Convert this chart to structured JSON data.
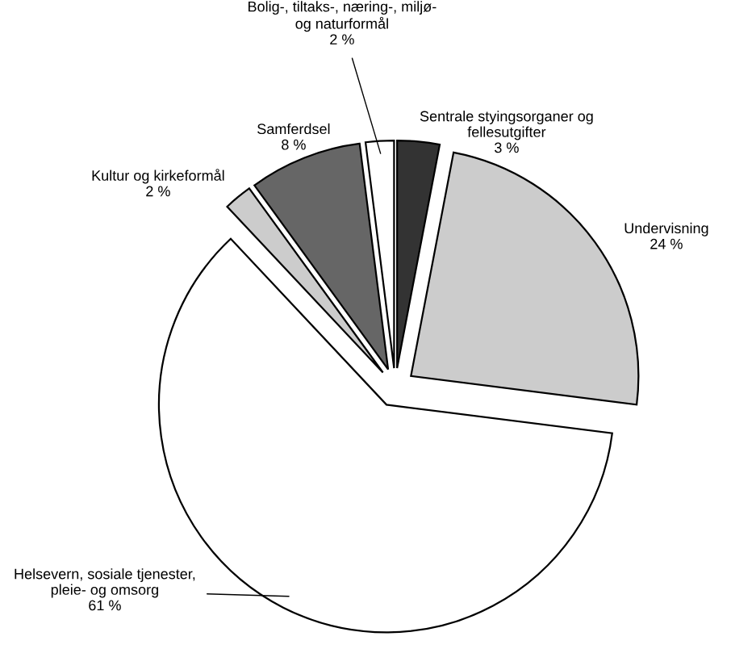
{
  "chart_data": {
    "type": "pie",
    "categories": [
      "Sentrale styingsorganer og\nfellesutgifter",
      "Undervisning",
      "Helsevern, sosiale tjenester,\npleie- og omsorg",
      "Kultur og kirkeformål",
      "Samferdsel",
      "Bolig-, tiltaks-, næring-, miljø-\nog naturformål"
    ],
    "values": [
      3,
      24,
      61,
      2,
      8,
      2
    ],
    "value_labels": [
      "3 %",
      "24 %",
      "61 %",
      "2 %",
      "8 %",
      "2 %"
    ],
    "colors": [
      "#333333",
      "#cccccc",
      "#ffffff",
      "#cccccc",
      "#666666",
      "#ffffff"
    ]
  }
}
